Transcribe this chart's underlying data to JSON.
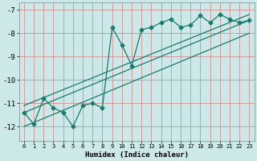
{
  "xlabel": "Humidex (Indice chaleur)",
  "bg_color": "#cce8e8",
  "grid_color": "#d09090",
  "line_color": "#1a7a6e",
  "xlim": [
    -0.5,
    23.5
  ],
  "ylim": [
    -12.6,
    -6.7
  ],
  "xticks": [
    0,
    1,
    2,
    3,
    4,
    5,
    6,
    7,
    8,
    9,
    10,
    11,
    12,
    13,
    14,
    15,
    16,
    17,
    18,
    19,
    20,
    21,
    22,
    23
  ],
  "yticks": [
    -12,
    -11,
    -10,
    -9,
    -8,
    -7
  ],
  "series1_x": [
    0,
    1,
    2,
    3,
    4,
    5,
    6,
    7,
    8,
    9,
    10,
    11,
    12,
    13,
    14,
    15,
    16,
    17,
    18,
    19,
    20,
    21,
    22,
    23
  ],
  "series1_y": [
    -11.4,
    -11.9,
    -10.8,
    -11.2,
    -11.4,
    -12.0,
    -11.1,
    -11.0,
    -11.2,
    -7.75,
    -8.5,
    -9.4,
    -7.85,
    -7.75,
    -7.55,
    -7.4,
    -7.75,
    -7.65,
    -7.25,
    -7.55,
    -7.2,
    -7.4,
    -7.55,
    -7.45
  ],
  "series2_x": [
    0,
    23
  ],
  "series2_y": [
    -11.4,
    -7.45
  ],
  "series3_x": [
    0,
    23
  ],
  "series3_y": [
    -11.1,
    -7.2
  ],
  "series4_x": [
    0,
    23
  ],
  "series4_y": [
    -12.0,
    -8.0
  ]
}
